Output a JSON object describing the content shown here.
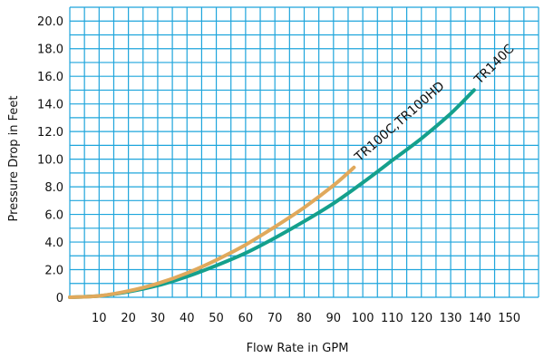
{
  "chart_data": {
    "type": "line",
    "xlabel": "Flow Rate in GPM",
    "ylabel": "Pressure Drop in Feet",
    "xlim": [
      0,
      160
    ],
    "ylim": [
      0,
      21
    ],
    "x_ticks": [
      10,
      20,
      30,
      40,
      50,
      60,
      70,
      80,
      90,
      100,
      110,
      120,
      130,
      140,
      150
    ],
    "y_ticks": [
      0,
      2.0,
      4.0,
      6.0,
      8.0,
      10.0,
      12.0,
      14.0,
      16.0,
      18.0,
      20.0
    ],
    "y_tick_labels": [
      "0",
      "2.0",
      "4.0",
      "6.0",
      "8.0",
      "10.0",
      "12.0",
      "14.0",
      "16.0",
      "18.0",
      "20.0"
    ],
    "grid": true,
    "grid_color": "#1ea5dc",
    "series": [
      {
        "name": "TR100C,TR100HD",
        "color": "#e0a95c",
        "x": [
          0,
          10,
          20,
          30,
          40,
          50,
          60,
          70,
          80,
          90,
          97
        ],
        "y": [
          0,
          0.1,
          0.45,
          1.0,
          1.75,
          2.7,
          3.8,
          5.1,
          6.5,
          8.1,
          9.4
        ]
      },
      {
        "name": "TR140C",
        "color": "#14a08c",
        "x": [
          0,
          10,
          20,
          30,
          40,
          50,
          60,
          70,
          80,
          90,
          100,
          110,
          120,
          130,
          138
        ],
        "y": [
          0,
          0.1,
          0.4,
          0.85,
          1.5,
          2.3,
          3.2,
          4.3,
          5.5,
          6.8,
          8.3,
          9.9,
          11.5,
          13.3,
          15.0
        ]
      }
    ]
  }
}
